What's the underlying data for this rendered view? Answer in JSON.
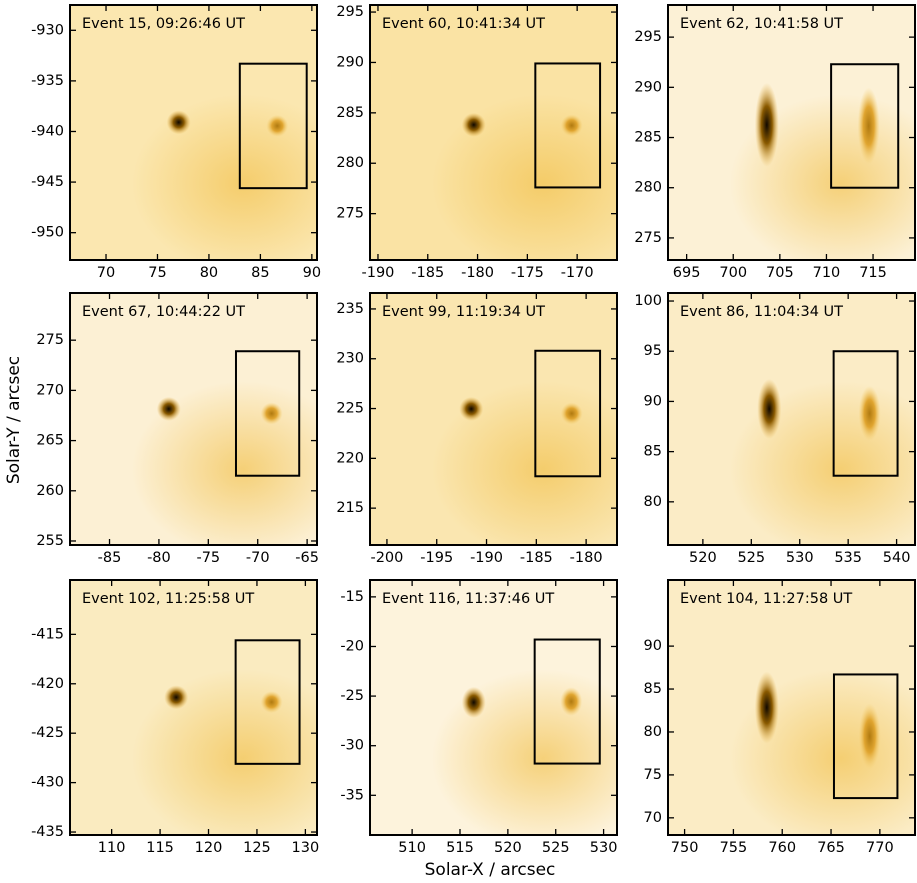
{
  "figure": {
    "xlabel": "Solar-X / arcsec",
    "ylabel": "Solar-Y / arcsec"
  },
  "chart_data": [
    {
      "type": "image",
      "title": "Event 15, 09:26:46 UT",
      "xlim": [
        66.5,
        90.5
      ],
      "ylim": [
        -952.7,
        -927.5
      ],
      "xticks": [
        70,
        75,
        80,
        85,
        90
      ],
      "yticks": [
        -950,
        -945,
        -940,
        -935,
        -930
      ],
      "box": {
        "x": [
          83.0,
          89.5
        ],
        "y": [
          -945.6,
          -933.3
        ]
      }
    },
    {
      "type": "image",
      "title": "Event 60, 10:41:34 UT",
      "xlim": [
        -190.8,
        -166.0
      ],
      "ylim": [
        270.4,
        295.7
      ],
      "xticks": [
        -190,
        -185,
        -180,
        -175,
        -170
      ],
      "yticks": [
        275,
        280,
        285,
        290,
        295
      ],
      "box": {
        "x": [
          -174.2,
          -167.7
        ],
        "y": [
          277.6,
          289.9
        ]
      }
    },
    {
      "type": "image",
      "title": "Event 62, 10:41:58 UT",
      "xlim": [
        693.0,
        719.5
      ],
      "ylim": [
        272.8,
        298.2
      ],
      "xticks": [
        695,
        700,
        705,
        710,
        715
      ],
      "yticks": [
        275,
        280,
        285,
        290,
        295
      ],
      "box": {
        "x": [
          710.5,
          717.7
        ],
        "y": [
          280.0,
          292.3
        ]
      }
    },
    {
      "type": "image",
      "title": "Event 67, 10:44:22 UT",
      "xlim": [
        -89.0,
        -64.0
      ],
      "ylim": [
        254.6,
        279.7
      ],
      "xticks": [
        -85,
        -80,
        -75,
        -70,
        -65
      ],
      "yticks": [
        255,
        260,
        265,
        270,
        275
      ],
      "box": {
        "x": [
          -72.2,
          -65.8
        ],
        "y": [
          261.5,
          273.9
        ]
      }
    },
    {
      "type": "image",
      "title": "Event 99, 11:19:34 UT",
      "xlim": [
        -201.7,
        -176.9
      ],
      "ylim": [
        211.3,
        236.6
      ],
      "xticks": [
        -200,
        -195,
        -190,
        -185,
        -180
      ],
      "yticks": [
        215,
        220,
        225,
        230,
        235
      ],
      "box": {
        "x": [
          -185.1,
          -178.6
        ],
        "y": [
          218.2,
          230.8
        ]
      }
    },
    {
      "type": "image",
      "title": "Event 86, 11:04:34 UT",
      "xlim": [
        516.4,
        541.9
      ],
      "ylim": [
        75.7,
        100.8
      ],
      "xticks": [
        520,
        525,
        530,
        535,
        540
      ],
      "yticks": [
        80,
        85,
        90,
        95,
        100
      ],
      "box": {
        "x": [
          533.5,
          540.1
        ],
        "y": [
          82.6,
          95.0
        ]
      }
    },
    {
      "type": "image",
      "title": "Event 102, 11:25:58 UT",
      "xlim": [
        105.7,
        131.2
      ],
      "ylim": [
        -435.3,
        -409.5
      ],
      "xticks": [
        110,
        115,
        120,
        125,
        130
      ],
      "yticks": [
        -435,
        -430,
        -425,
        -420,
        -415
      ],
      "box": {
        "x": [
          122.8,
          129.4
        ],
        "y": [
          -428.1,
          -415.6
        ]
      }
    },
    {
      "type": "image",
      "title": "Event 116, 11:37:46 UT",
      "xlim": [
        505.6,
        531.4
      ],
      "ylim": [
        -39.0,
        -13.3
      ],
      "xticks": [
        510,
        515,
        520,
        525,
        530
      ],
      "yticks": [
        -35,
        -30,
        -25,
        -20,
        -15
      ],
      "box": {
        "x": [
          522.8,
          529.6
        ],
        "y": [
          -31.8,
          -19.3
        ]
      }
    },
    {
      "type": "image",
      "title": "Event 104, 11:27:58 UT",
      "xlim": [
        748.3,
        773.6
      ],
      "ylim": [
        68.0,
        97.7
      ],
      "xticks": [
        750,
        755,
        760,
        765,
        770
      ],
      "yticks": [
        70,
        75,
        80,
        85,
        90
      ],
      "box": {
        "x": [
          765.3,
          771.8
        ],
        "y": [
          72.3,
          86.7
        ]
      }
    }
  ]
}
